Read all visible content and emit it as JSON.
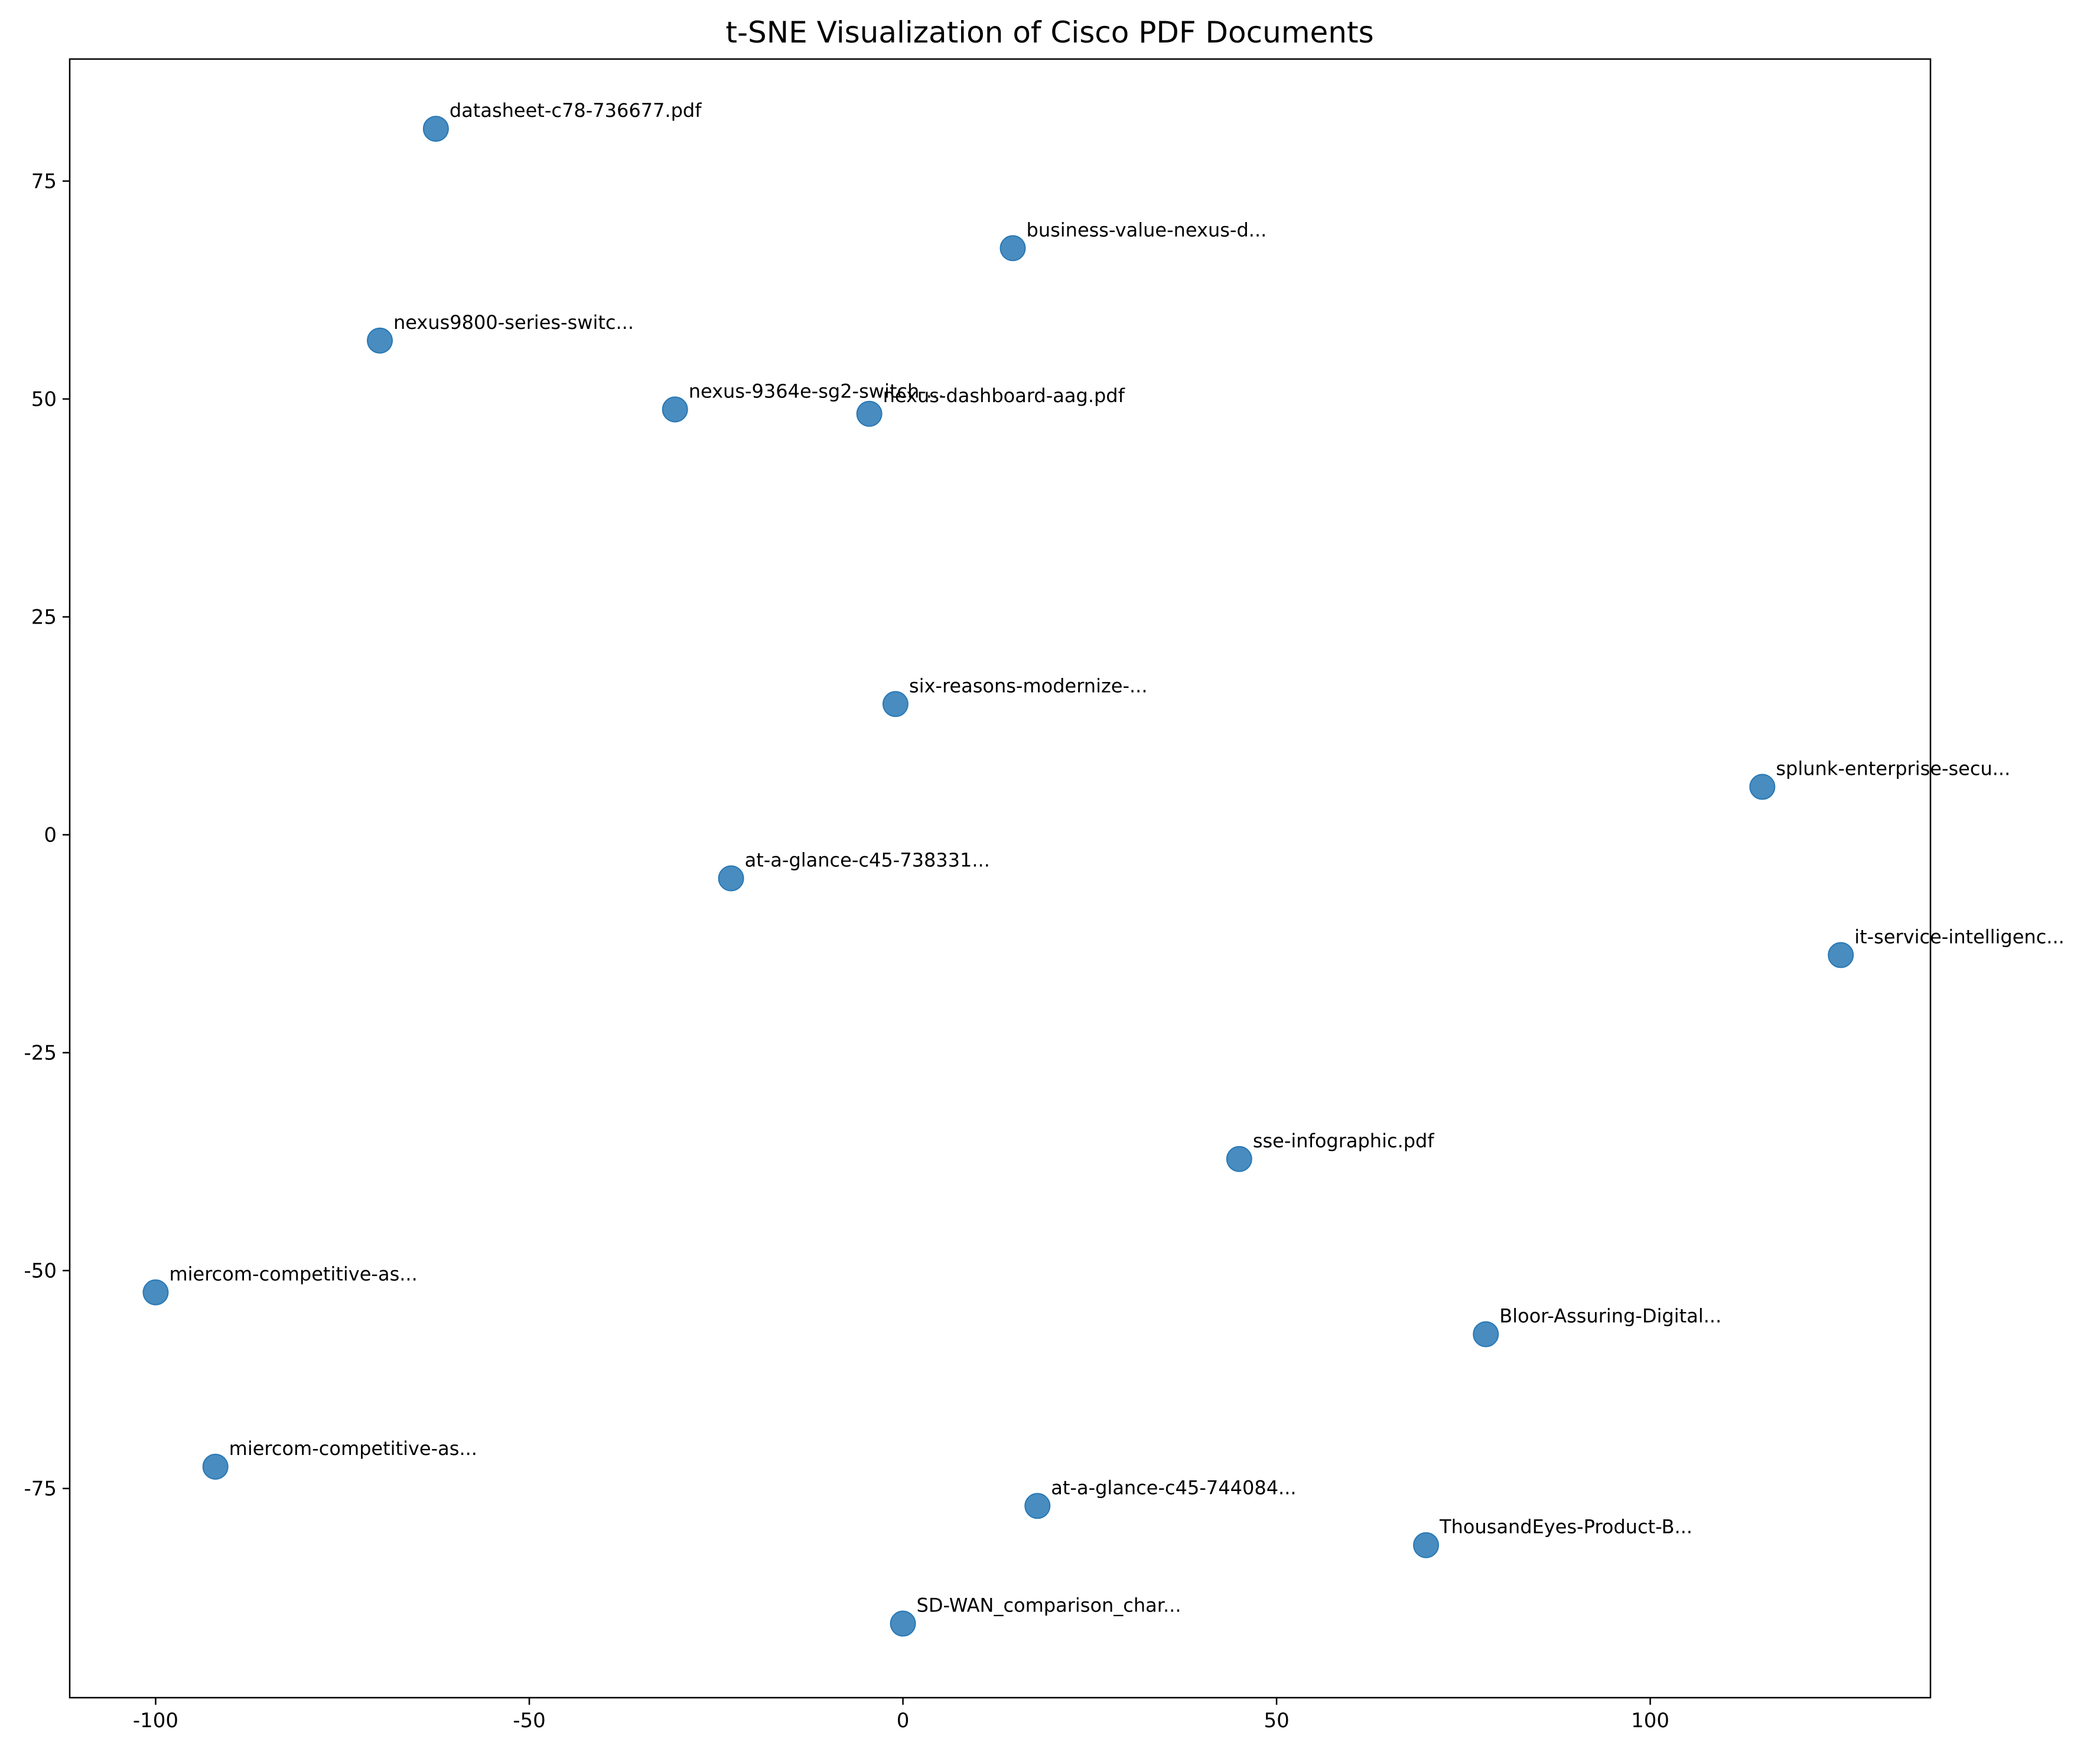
{
  "chart_data": {
    "type": "scatter",
    "title": "t-SNE Visualization of Cisco PDF Documents",
    "xlabel": "",
    "ylabel": "",
    "xlim": [
      -111.5,
      137.5
    ],
    "ylim": [
      -99,
      89
    ],
    "xticks": [
      {
        "value": -100,
        "label": "-100"
      },
      {
        "value": -50,
        "label": "-50"
      },
      {
        "value": 0,
        "label": "0"
      },
      {
        "value": 50,
        "label": "50"
      },
      {
        "value": 100,
        "label": "100"
      }
    ],
    "yticks": [
      {
        "value": -75,
        "label": "-75"
      },
      {
        "value": -50,
        "label": "-50"
      },
      {
        "value": -25,
        "label": "-25"
      },
      {
        "value": 0,
        "label": "0"
      },
      {
        "value": 25,
        "label": "25"
      },
      {
        "value": 50,
        "label": "50"
      },
      {
        "value": 75,
        "label": "75"
      }
    ],
    "grid": false,
    "marker_color": "#2878b5",
    "points": [
      {
        "x": -62.5,
        "y": 81.0,
        "label": "datasheet-c78-736677.pdf"
      },
      {
        "x": 14.7,
        "y": 67.3,
        "label": "business-value-nexus-d..."
      },
      {
        "x": -70.0,
        "y": 56.7,
        "label": "nexus9800-series-switc..."
      },
      {
        "x": -30.5,
        "y": 48.8,
        "label": "nexus-9364e-sg2-switch-..."
      },
      {
        "x": -4.5,
        "y": 48.3,
        "label": "nexus-dashboard-aag.pdf"
      },
      {
        "x": -1.0,
        "y": 15.0,
        "label": "six-reasons-modernize-..."
      },
      {
        "x": 115.0,
        "y": 5.5,
        "label": "splunk-enterprise-secu..."
      },
      {
        "x": -23.0,
        "y": -5.0,
        "label": "at-a-glance-c45-738331..."
      },
      {
        "x": 125.5,
        "y": -13.8,
        "label": "it-service-intelligenc..."
      },
      {
        "x": 45.0,
        "y": -37.2,
        "label": "sse-infographic.pdf"
      },
      {
        "x": -100.0,
        "y": -52.5,
        "label": "miercom-competitive-as..."
      },
      {
        "x": 78.0,
        "y": -57.3,
        "label": "Bloor-Assuring-Digital..."
      },
      {
        "x": -92.0,
        "y": -72.5,
        "label": "miercom-competitive-as..."
      },
      {
        "x": 18.0,
        "y": -77.0,
        "label": "at-a-glance-c45-744084..."
      },
      {
        "x": 70.0,
        "y": -81.5,
        "label": "ThousandEyes-Product-B..."
      },
      {
        "x": 0.0,
        "y": -90.5,
        "label": "SD-WAN_comparison_char..."
      }
    ]
  }
}
